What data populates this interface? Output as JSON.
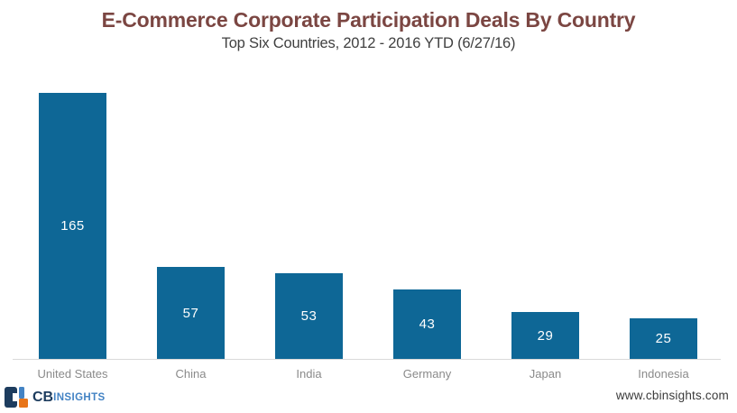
{
  "title": "E-Commerce Corporate Participation Deals By Country",
  "subtitle": "Top Six Countries, 2012 - 2016 YTD (6/27/16)",
  "chart_data": {
    "type": "bar",
    "title": "E-Commerce Corporate Participation Deals By Country",
    "subtitle": "Top Six Countries, 2012 - 2016 YTD (6/27/16)",
    "categories": [
      "United States",
      "China",
      "India",
      "Germany",
      "Japan",
      "Indonesia"
    ],
    "values": [
      165,
      57,
      53,
      43,
      29,
      25
    ],
    "xlabel": "",
    "ylabel": "",
    "ylim": [
      0,
      185
    ],
    "grid": false,
    "legend": "none",
    "value_label_position": "inside-center",
    "bar_color": "#0e6796"
  },
  "footer": {
    "logo_cb": "CB",
    "logo_insights": "INSIGHTS",
    "website": "www.cbinsights.com"
  },
  "colors": {
    "title": "#7b4642",
    "subtitle": "#404040",
    "bar": "#0e6796",
    "value_label": "#ffffff",
    "axis_label": "#8a8a8a",
    "axis_line": "#d9d9d9",
    "logo_navy": "#1d3c5e",
    "logo_blue": "#4383c4",
    "logo_orange": "#e8751a",
    "website_text": "#3a3a3a"
  }
}
